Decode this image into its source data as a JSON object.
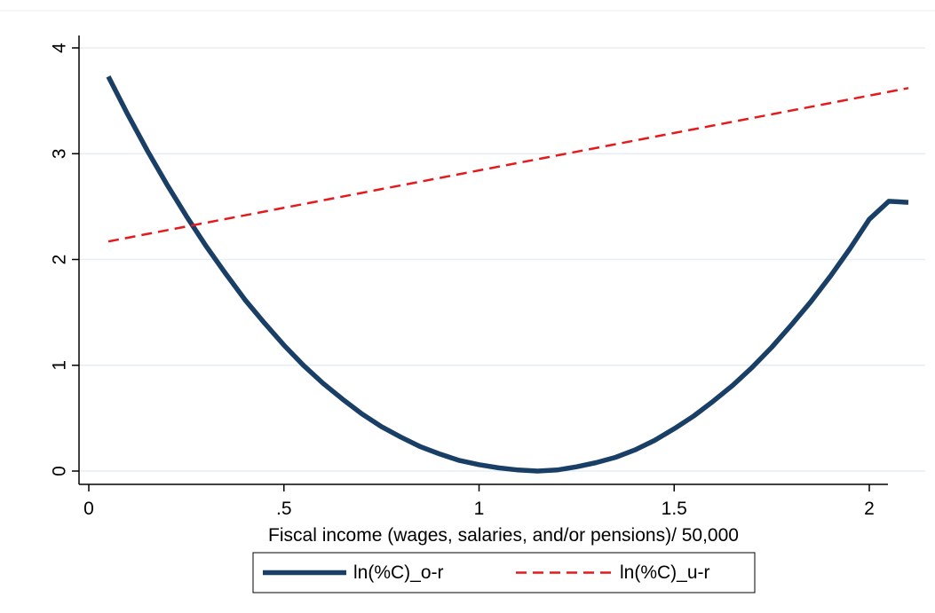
{
  "chart_data": {
    "type": "line",
    "xlabel": "Fiscal income (wages, salaries, and/or pensions)/ 50,000",
    "ylabel": "",
    "xlim": [
      0,
      2.15
    ],
    "ylim": [
      0,
      4
    ],
    "x_ticks": [
      {
        "value": 0,
        "label": "0"
      },
      {
        "value": 0.5,
        "label": ".5"
      },
      {
        "value": 1,
        "label": "1"
      },
      {
        "value": 1.5,
        "label": "1.5"
      },
      {
        "value": 2,
        "label": "2"
      }
    ],
    "y_ticks": [
      {
        "value": 0,
        "label": "0"
      },
      {
        "value": 1,
        "label": "1"
      },
      {
        "value": 2,
        "label": "2"
      },
      {
        "value": 3,
        "label": "3"
      },
      {
        "value": 4,
        "label": "4"
      }
    ],
    "grid": "horizontal",
    "legend_position": "bottom",
    "series": [
      {
        "name": "ln(%C)_o-r",
        "color": "#1a3f66",
        "style": "solid",
        "x": [
          0.05,
          0.1,
          0.15,
          0.2,
          0.25,
          0.3,
          0.35,
          0.4,
          0.45,
          0.5,
          0.55,
          0.6,
          0.65,
          0.7,
          0.75,
          0.8,
          0.85,
          0.9,
          0.95,
          1.0,
          1.05,
          1.1,
          1.15,
          1.2,
          1.25,
          1.3,
          1.35,
          1.4,
          1.45,
          1.5,
          1.55,
          1.6,
          1.65,
          1.7,
          1.75,
          1.8,
          1.85,
          1.9,
          1.95,
          2.0,
          2.05,
          2.1
        ],
        "y": [
          3.73,
          3.37,
          3.03,
          2.71,
          2.41,
          2.13,
          1.87,
          1.62,
          1.4,
          1.19,
          1.0,
          0.83,
          0.68,
          0.54,
          0.42,
          0.32,
          0.23,
          0.16,
          0.1,
          0.06,
          0.03,
          0.01,
          0.0,
          0.01,
          0.04,
          0.08,
          0.13,
          0.2,
          0.29,
          0.4,
          0.52,
          0.66,
          0.81,
          0.98,
          1.17,
          1.38,
          1.6,
          1.84,
          2.1,
          2.38,
          2.55,
          2.54
        ]
      },
      {
        "name": "ln(%C)_u-r",
        "color": "#e41a1c",
        "style": "dashed",
        "x": [
          0.05,
          2.1
        ],
        "y": [
          2.17,
          3.62
        ]
      }
    ]
  }
}
